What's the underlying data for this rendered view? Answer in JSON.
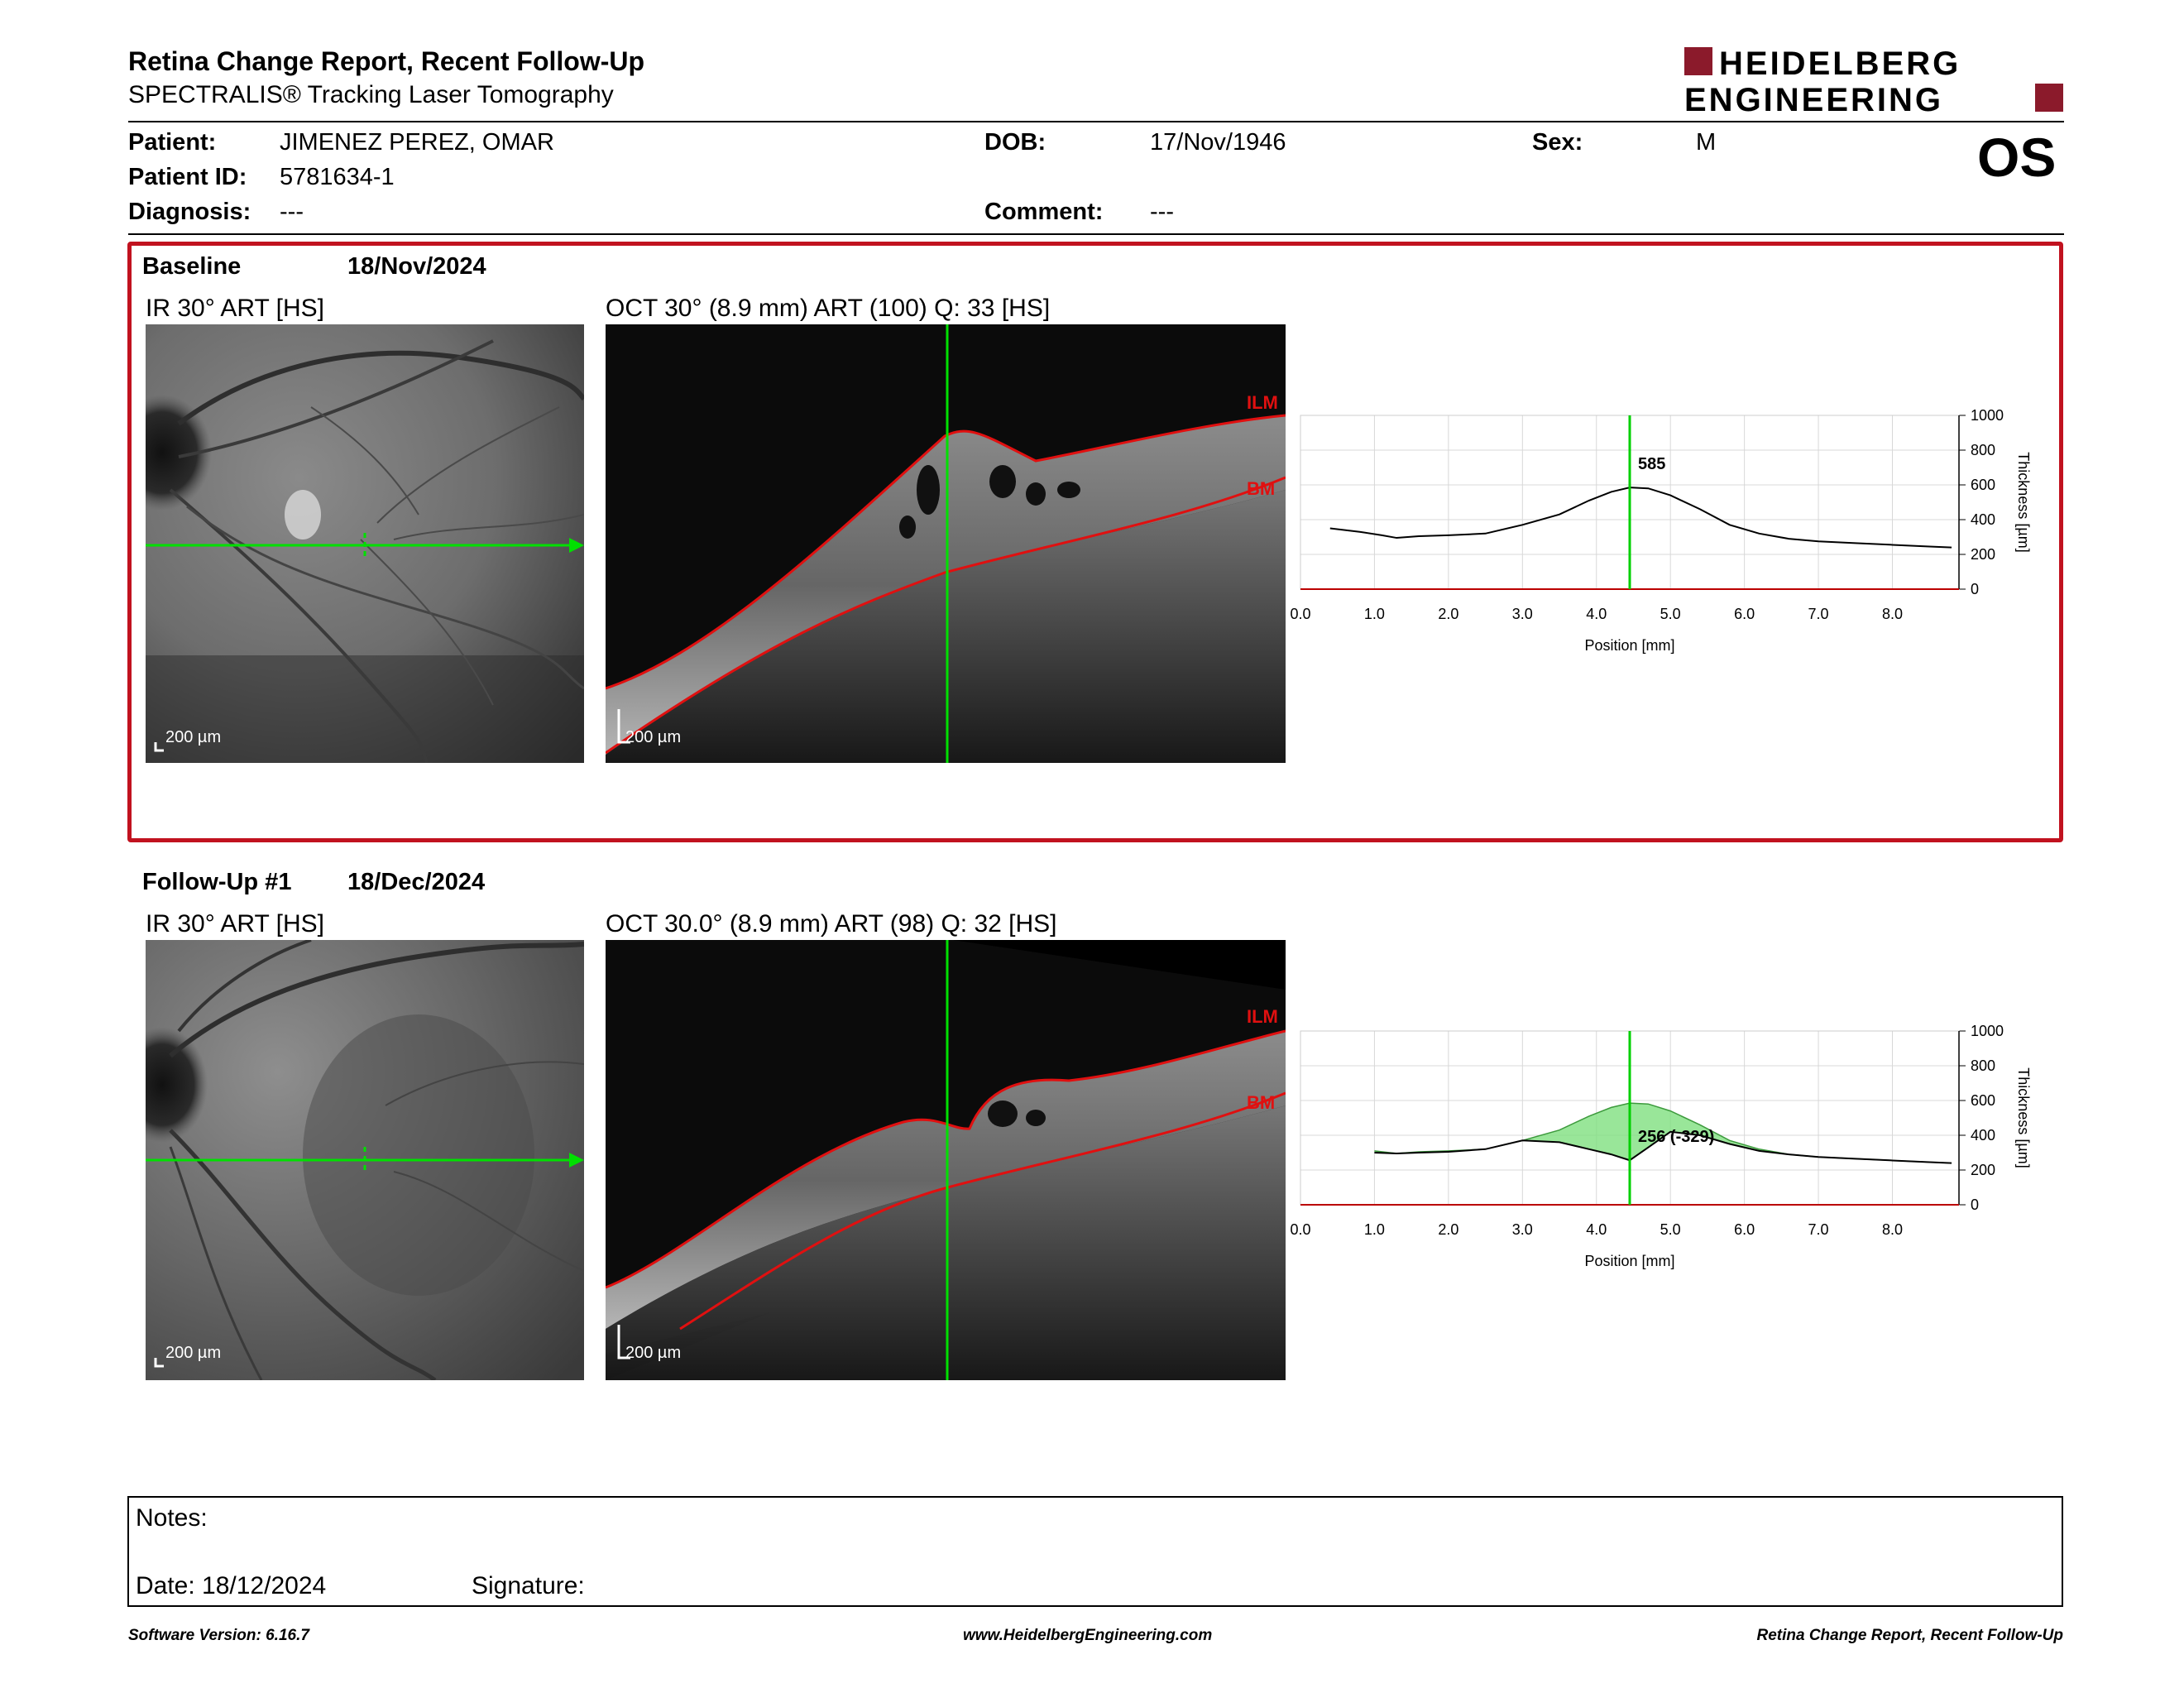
{
  "header": {
    "title": "Retina Change Report, Recent Follow-Up",
    "subtitle": "SPECTRALIS® Tracking Laser Tomography",
    "logo_line1": "HEIDELBERG",
    "logo_line2": "ENGINEERING",
    "brand_color": "#8b1a2b"
  },
  "patient": {
    "patient_label": "Patient:",
    "patient_value": "JIMENEZ PEREZ, OMAR",
    "id_label": "Patient ID:",
    "id_value": "5781634-1",
    "diagnosis_label": "Diagnosis:",
    "diagnosis_value": "---",
    "dob_label": "DOB:",
    "dob_value": "17/Nov/1946",
    "comment_label": "Comment:",
    "comment_value": "---",
    "sex_label": "Sex:",
    "sex_value": "M",
    "eye": "OS"
  },
  "baseline": {
    "label": "Baseline",
    "date": "18/Nov/2024",
    "ir_label": "IR 30° ART [HS]",
    "oct_label": "OCT 30° (8.9 mm) ART (100) Q: 33 [HS]",
    "scale": "200 µm",
    "ilm": "ILM",
    "bm": "BM",
    "border_color": "#c1121f"
  },
  "followup": {
    "label": "Follow-Up #1",
    "date": "18/Dec/2024",
    "ir_label": "IR 30° ART [HS]",
    "oct_label": "OCT 30.0° (8.9 mm) ART (98) Q: 32 [HS]",
    "scale": "200 µm",
    "ilm": "ILM",
    "bm": "BM"
  },
  "chart_data": [
    {
      "type": "line",
      "xlabel": "Position [mm]",
      "ylabel": "Thickness [µm]",
      "xlim": [
        0,
        8.9
      ],
      "ylim": [
        0,
        1000
      ],
      "xticks": [
        "0.0",
        "1.0",
        "2.0",
        "3.0",
        "4.0",
        "5.0",
        "6.0",
        "7.0",
        "8.0"
      ],
      "yticks": [
        "0",
        "200",
        "400",
        "600",
        "800",
        "1000"
      ],
      "cursor_x": 4.45,
      "cursor_label": "585",
      "series": [
        {
          "x": [
            0.4,
            0.8,
            1.1,
            1.3,
            1.6,
            2.0,
            2.5,
            3.0,
            3.5,
            3.9,
            4.2,
            4.45,
            4.7,
            5.0,
            5.4,
            5.8,
            6.2,
            6.6,
            7.0,
            7.5,
            8.0,
            8.5,
            8.8
          ],
          "y": [
            350,
            330,
            310,
            295,
            305,
            310,
            320,
            370,
            430,
            510,
            560,
            585,
            580,
            540,
            460,
            370,
            320,
            290,
            275,
            265,
            255,
            245,
            240
          ]
        }
      ]
    },
    {
      "type": "line",
      "xlabel": "Position [mm]",
      "ylabel": "Thickness [µm]",
      "xlim": [
        0,
        8.9
      ],
      "ylim": [
        0,
        1000
      ],
      "xticks": [
        "0.0",
        "1.0",
        "2.0",
        "3.0",
        "4.0",
        "5.0",
        "6.0",
        "7.0",
        "8.0"
      ],
      "yticks": [
        "0",
        "200",
        "400",
        "600",
        "800",
        "1000"
      ],
      "cursor_x": 4.45,
      "cursor_label": "256 (-329)",
      "fill_color": "#7fe07f",
      "series": [
        {
          "x": [
            1.0,
            1.3,
            1.6,
            2.0,
            2.5,
            3.0,
            3.5,
            3.9,
            4.2,
            4.45,
            4.7,
            5.0,
            5.4,
            5.8,
            6.2,
            6.6,
            7.0,
            7.5,
            8.0,
            8.5,
            8.8
          ],
          "y": [
            300,
            295,
            300,
            305,
            320,
            370,
            360,
            320,
            290,
            256,
            330,
            420,
            400,
            350,
            310,
            290,
            275,
            265,
            255,
            245,
            240
          ]
        },
        {
          "x": [
            1.0,
            1.3,
            1.6,
            2.0,
            2.5,
            3.0,
            3.5,
            3.9,
            4.2,
            4.45,
            4.7,
            5.0,
            5.4,
            5.8,
            6.2,
            6.6,
            7.0,
            7.5,
            8.0,
            8.5,
            8.8
          ],
          "y": [
            310,
            295,
            305,
            310,
            320,
            370,
            430,
            510,
            560,
            585,
            580,
            540,
            460,
            370,
            320,
            290,
            275,
            265,
            255,
            245,
            240
          ]
        }
      ]
    }
  ],
  "notes": {
    "notes_label": "Notes:",
    "date_label": "Date: 18/12/2024",
    "signature_label": "Signature:"
  },
  "footer": {
    "software": "Software Version: 6.16.7",
    "website": "www.HeidelbergEngineering.com",
    "report": "Retina Change Report, Recent Follow-Up"
  }
}
